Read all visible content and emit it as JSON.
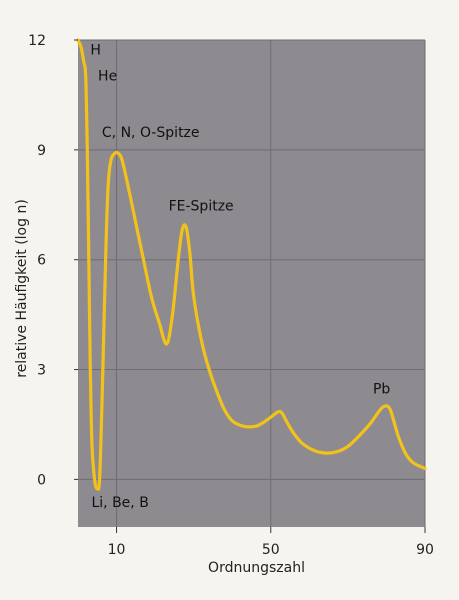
{
  "chart_data": {
    "type": "line",
    "title": "",
    "xlabel": "Ordnungszahl",
    "ylabel": "relative Häufigkeit (log n)",
    "xlim": [
      0,
      90
    ],
    "ylim": [
      -1.3,
      12
    ],
    "x_ticks": [
      10,
      50,
      90
    ],
    "y_ticks": [
      0,
      3,
      6,
      9,
      12
    ],
    "grid": true,
    "colors": {
      "background": "#8e8b90",
      "grid": "#6f6c72",
      "line": "#f2c21a"
    },
    "series": [
      {
        "name": "",
        "points": [
          [
            0,
            12
          ],
          [
            0.8,
            11.8
          ],
          [
            1.5,
            11.4
          ],
          [
            2,
            11.0
          ],
          [
            2.4,
            9.0
          ],
          [
            2.8,
            6.0
          ],
          [
            3.2,
            3.0
          ],
          [
            3.6,
            1.0
          ],
          [
            4.3,
            0.0
          ],
          [
            5.0,
            -0.25
          ],
          [
            5.6,
            0.0
          ],
          [
            6.2,
            2.0
          ],
          [
            6.8,
            4.5
          ],
          [
            7.3,
            6.5
          ],
          [
            7.8,
            8.0
          ],
          [
            8.5,
            8.7
          ],
          [
            9.5,
            8.9
          ],
          [
            10.5,
            8.9
          ],
          [
            11.5,
            8.7
          ],
          [
            13,
            8.0
          ],
          [
            15,
            7.0
          ],
          [
            17,
            6.0
          ],
          [
            19,
            5.0
          ],
          [
            21,
            4.3
          ],
          [
            23,
            3.7
          ],
          [
            24.5,
            4.5
          ],
          [
            26,
            6.0
          ],
          [
            27,
            6.8
          ],
          [
            28,
            6.9
          ],
          [
            29,
            6.2
          ],
          [
            30,
            5.0
          ],
          [
            32,
            3.8
          ],
          [
            34,
            3.0
          ],
          [
            36,
            2.4
          ],
          [
            38,
            1.9
          ],
          [
            40,
            1.6
          ],
          [
            43,
            1.45
          ],
          [
            46,
            1.45
          ],
          [
            48,
            1.55
          ],
          [
            50,
            1.7
          ],
          [
            52,
            1.85
          ],
          [
            53,
            1.8
          ],
          [
            54,
            1.6
          ],
          [
            56,
            1.25
          ],
          [
            58,
            1.0
          ],
          [
            61,
            0.8
          ],
          [
            64,
            0.72
          ],
          [
            67,
            0.75
          ],
          [
            70,
            0.9
          ],
          [
            73,
            1.2
          ],
          [
            76,
            1.55
          ],
          [
            78,
            1.85
          ],
          [
            79.5,
            2.0
          ],
          [
            81,
            1.9
          ],
          [
            83,
            1.2
          ],
          [
            85,
            0.7
          ],
          [
            87,
            0.45
          ],
          [
            90,
            0.3
          ]
        ]
      }
    ],
    "annotations": [
      {
        "text": "H",
        "x": 3.2,
        "y": 11.6
      },
      {
        "text": "He",
        "x": 5.2,
        "y": 10.9
      },
      {
        "text": "C, N, O-Spitze",
        "x": 6.2,
        "y": 9.35
      },
      {
        "text": "FE-Spitze",
        "x": 23.5,
        "y": 7.35
      },
      {
        "text": "Pb",
        "x": 76.5,
        "y": 2.35
      },
      {
        "text": "Li, Be, B",
        "x": 3.5,
        "y": -0.75
      }
    ]
  }
}
